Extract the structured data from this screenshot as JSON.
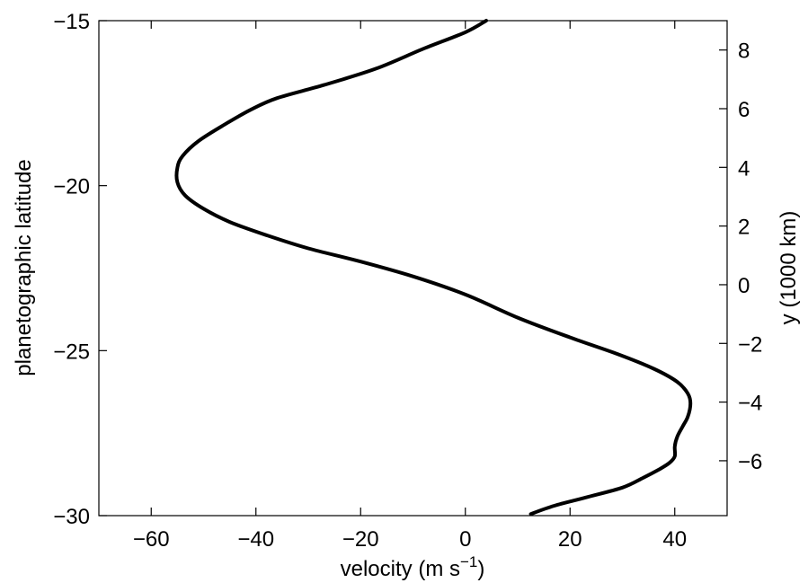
{
  "chart_data": {
    "type": "line",
    "title": "",
    "xlabel": "velocity (m s",
    "xlabel_sup": "−1",
    "xlabel_close": ")",
    "ylabel_left": "planetographic latitude",
    "ylabel_right": "y (1000 km)",
    "xlim": [
      -70,
      50
    ],
    "ylim_left": [
      -30,
      -15
    ],
    "ylim_right": [
      -7.87,
      9.0
    ],
    "x_ticks": [
      -60,
      -40,
      -20,
      0,
      20,
      40
    ],
    "x_tick_labels": [
      "−60",
      "−40",
      "−20",
      "0",
      "20",
      "40"
    ],
    "y_left_ticks": [
      -30,
      -25,
      -20,
      -15
    ],
    "y_left_tick_labels": [
      "−30",
      "−25",
      "−20",
      "−15"
    ],
    "y_right_ticks": [
      -6,
      -4,
      -2,
      0,
      2,
      4,
      6,
      8
    ],
    "y_right_tick_labels": [
      "−6",
      "−4",
      "−2",
      "0",
      "2",
      "4",
      "6",
      "8"
    ],
    "grid": false,
    "line_color": "#000000",
    "series": [
      {
        "x": [
          12.5,
          17,
          23,
          30,
          34,
          37,
          39,
          40,
          40,
          40.5,
          41.5,
          42.5,
          43,
          42.5,
          40.5,
          36,
          29,
          20,
          10,
          0,
          -10,
          -20,
          -30,
          -38,
          -45,
          -50,
          -53.5,
          -55,
          -55,
          -54,
          -51,
          -46,
          -41,
          -36,
          -27,
          -17,
          -8,
          0,
          4
        ],
        "y": [
          -29.95,
          -29.7,
          -29.45,
          -29.15,
          -28.85,
          -28.6,
          -28.4,
          -28.2,
          -27.9,
          -27.6,
          -27.3,
          -27.0,
          -26.6,
          -26.3,
          -25.95,
          -25.55,
          -25.1,
          -24.6,
          -24.0,
          -23.3,
          -22.75,
          -22.3,
          -21.9,
          -21.5,
          -21.1,
          -20.7,
          -20.3,
          -19.9,
          -19.45,
          -19.1,
          -18.65,
          -18.15,
          -17.7,
          -17.35,
          -16.95,
          -16.45,
          -15.85,
          -15.35,
          -15.0
        ]
      }
    ]
  }
}
